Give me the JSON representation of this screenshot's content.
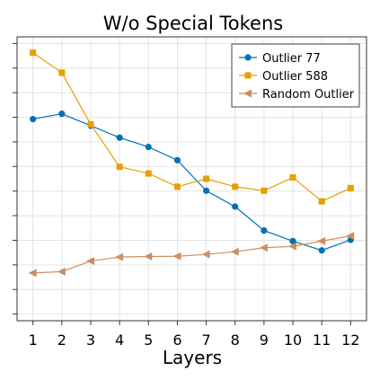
{
  "chart_data": {
    "type": "line",
    "title": "W/o Special Tokens",
    "xlabel": "Layers",
    "ylabel": "",
    "x": [
      1,
      2,
      3,
      4,
      5,
      6,
      7,
      8,
      9,
      10,
      11,
      12
    ],
    "xlim": [
      0.45,
      12.55
    ],
    "ylim": [
      -0.1,
      10.6
    ],
    "y_tick_count": 12,
    "grid": true,
    "legend_position": "top-right",
    "series": [
      {
        "name": "Outlier 77",
        "color": "#0072b2",
        "marker": "circle",
        "values": [
          7.5,
          7.7,
          7.25,
          6.8,
          6.45,
          5.95,
          4.8,
          4.2,
          3.3,
          2.9,
          2.55,
          2.95
        ]
      },
      {
        "name": "Outlier 588",
        "color": "#e69f00",
        "marker": "square",
        "values": [
          10.0,
          9.25,
          7.3,
          5.7,
          5.45,
          4.95,
          5.25,
          4.95,
          4.8,
          5.3,
          4.4,
          4.9
        ]
      },
      {
        "name": "Random Outlier",
        "color": "#cc8f63",
        "marker": "triangle-left",
        "values": [
          1.7,
          1.75,
          2.15,
          2.3,
          2.32,
          2.33,
          2.4,
          2.5,
          2.65,
          2.7,
          2.9,
          3.1
        ]
      }
    ]
  }
}
